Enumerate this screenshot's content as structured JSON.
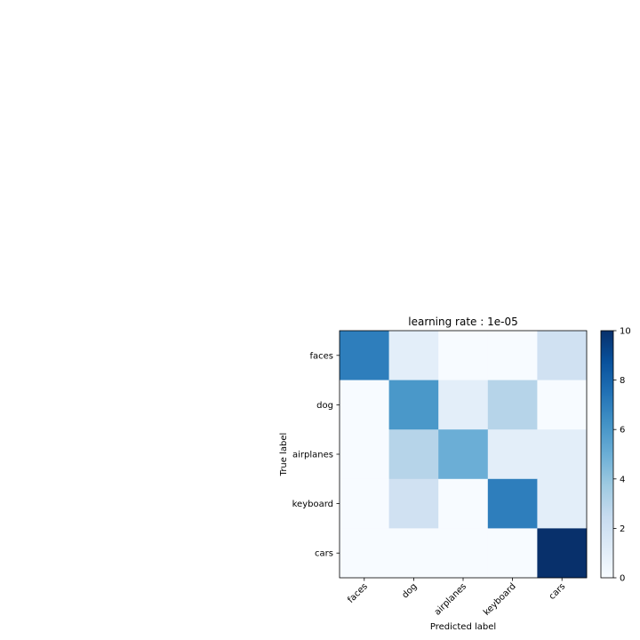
{
  "chart_data": {
    "type": "heatmap",
    "title": "learning rate : 1e-05",
    "xlabel": "Predicted label",
    "ylabel": "True label",
    "x_categories": [
      "faces",
      "dog",
      "airplanes",
      "keyboard",
      "cars"
    ],
    "y_categories": [
      "faces",
      "dog",
      "airplanes",
      "keyboard",
      "cars"
    ],
    "values": [
      [
        7,
        1,
        0,
        0,
        2
      ],
      [
        0,
        6,
        1,
        3,
        0
      ],
      [
        0,
        3,
        5,
        1,
        1
      ],
      [
        0,
        2,
        0,
        7,
        1
      ],
      [
        0,
        0,
        0,
        0,
        10
      ]
    ],
    "colorbar": {
      "range": [
        0,
        10
      ],
      "ticks": [
        "0",
        "2",
        "4",
        "6",
        "8",
        "10"
      ],
      "colormap": "Blues"
    },
    "x_tick_rotation": "45deg"
  }
}
